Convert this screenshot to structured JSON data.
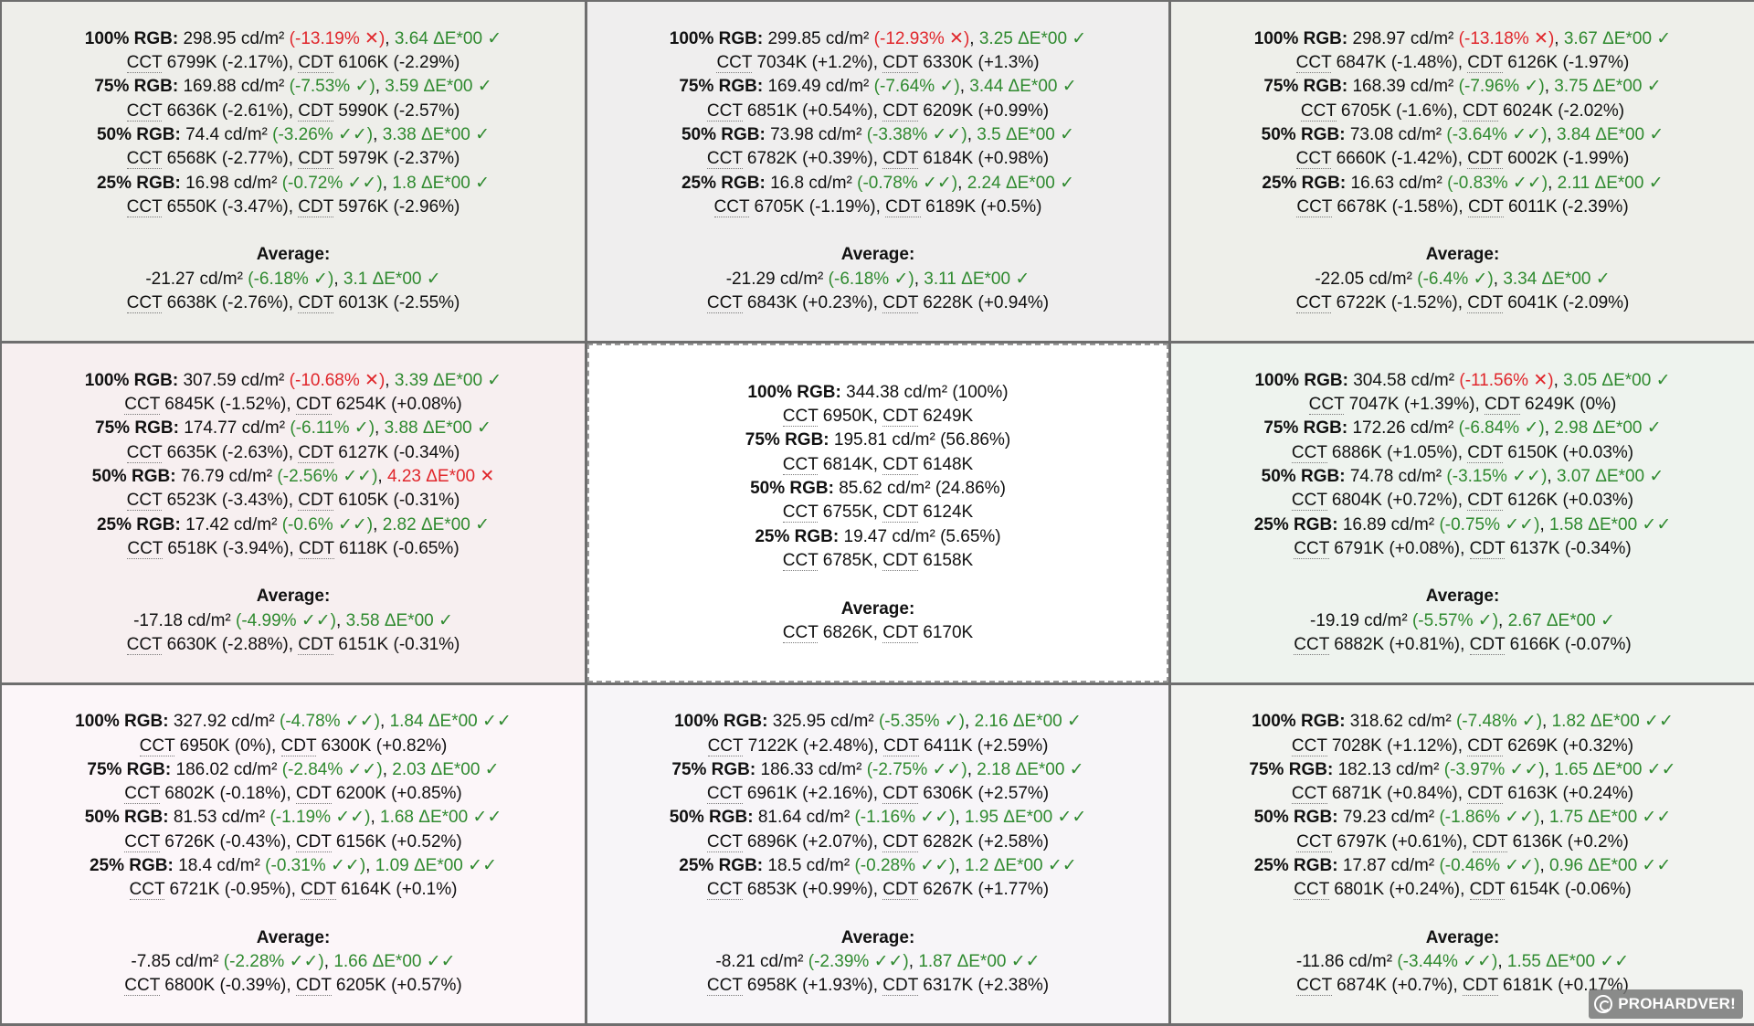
{
  "watermark": "PROHARDVER!",
  "labels": {
    "cct": "CCT",
    "cdt": "CDT",
    "average": "Average:"
  },
  "cells": [
    {
      "bg": "#eeeeea",
      "levels": [
        {
          "label": "100% RGB:",
          "lum": "298.95 cd/m²",
          "dev": "(-13.19% ✕)",
          "dev_status": "bad",
          "de": "3.64 ΔE*00 ✓",
          "de_status": "good",
          "cct": "6799K (-2.17%)",
          "cdt": "6106K (-2.29%)"
        },
        {
          "label": "75% RGB:",
          "lum": "169.88 cd/m²",
          "dev": "(-7.53% ✓)",
          "dev_status": "good",
          "de": "3.59 ΔE*00 ✓",
          "de_status": "good",
          "cct": "6636K (-2.61%)",
          "cdt": "5990K (-2.57%)"
        },
        {
          "label": "50% RGB:",
          "lum": "74.4 cd/m²",
          "dev": "(-3.26% ✓✓)",
          "dev_status": "good",
          "de": "3.38 ΔE*00 ✓",
          "de_status": "good",
          "cct": "6568K (-2.77%)",
          "cdt": "5979K (-2.37%)"
        },
        {
          "label": "25% RGB:",
          "lum": "16.98 cd/m²",
          "dev": "(-0.72% ✓✓)",
          "dev_status": "good",
          "de": "1.8 ΔE*00 ✓",
          "de_status": "good",
          "cct": "6550K (-3.47%)",
          "cdt": "5976K (-2.96%)"
        }
      ],
      "average": {
        "lum": "-21.27 cd/m²",
        "dev": "(-6.18% ✓)",
        "dev_status": "good",
        "de": "3.1 ΔE*00 ✓",
        "de_status": "good",
        "cct": "6638K (-2.76%)",
        "cdt": "6013K (-2.55%)"
      }
    },
    {
      "bg": "#efeeee",
      "levels": [
        {
          "label": "100% RGB:",
          "lum": "299.85 cd/m²",
          "dev": "(-12.93% ✕)",
          "dev_status": "bad",
          "de": "3.25 ΔE*00 ✓",
          "de_status": "good",
          "cct": "7034K (+1.2%)",
          "cdt": "6330K (+1.3%)"
        },
        {
          "label": "75% RGB:",
          "lum": "169.49 cd/m²",
          "dev": "(-7.64% ✓)",
          "dev_status": "good",
          "de": "3.44 ΔE*00 ✓",
          "de_status": "good",
          "cct": "6851K (+0.54%)",
          "cdt": "6209K (+0.99%)"
        },
        {
          "label": "50% RGB:",
          "lum": "73.98 cd/m²",
          "dev": "(-3.38% ✓✓)",
          "dev_status": "good",
          "de": "3.5 ΔE*00 ✓",
          "de_status": "good",
          "cct": "6782K (+0.39%)",
          "cdt": "6184K (+0.98%)"
        },
        {
          "label": "25% RGB:",
          "lum": "16.8 cd/m²",
          "dev": "(-0.78% ✓✓)",
          "dev_status": "good",
          "de": "2.24 ΔE*00 ✓",
          "de_status": "good",
          "cct": "6705K (-1.19%)",
          "cdt": "6189K (+0.5%)"
        }
      ],
      "average": {
        "lum": "-21.29 cd/m²",
        "dev": "(-6.18% ✓)",
        "dev_status": "good",
        "de": "3.11 ΔE*00 ✓",
        "de_status": "good",
        "cct": "6843K (+0.23%)",
        "cdt": "6228K (+0.94%)"
      }
    },
    {
      "bg": "#eeefea",
      "levels": [
        {
          "label": "100% RGB:",
          "lum": "298.97 cd/m²",
          "dev": "(-13.18% ✕)",
          "dev_status": "bad",
          "de": "3.67 ΔE*00 ✓",
          "de_status": "good",
          "cct": "6847K (-1.48%)",
          "cdt": "6126K (-1.97%)"
        },
        {
          "label": "75% RGB:",
          "lum": "168.39 cd/m²",
          "dev": "(-7.96% ✓)",
          "dev_status": "good",
          "de": "3.75 ΔE*00 ✓",
          "de_status": "good",
          "cct": "6705K (-1.6%)",
          "cdt": "6024K (-2.02%)"
        },
        {
          "label": "50% RGB:",
          "lum": "73.08 cd/m²",
          "dev": "(-3.64% ✓✓)",
          "dev_status": "good",
          "de": "3.84 ΔE*00 ✓",
          "de_status": "good",
          "cct": "6660K (-1.42%)",
          "cdt": "6002K (-1.99%)"
        },
        {
          "label": "25% RGB:",
          "lum": "16.63 cd/m²",
          "dev": "(-0.83% ✓✓)",
          "dev_status": "good",
          "de": "2.11 ΔE*00 ✓",
          "de_status": "good",
          "cct": "6678K (-1.58%)",
          "cdt": "6011K (-2.39%)"
        }
      ],
      "average": {
        "lum": "-22.05 cd/m²",
        "dev": "(-6.4% ✓)",
        "dev_status": "good",
        "de": "3.34 ΔE*00 ✓",
        "de_status": "good",
        "cct": "6722K (-1.52%)",
        "cdt": "6041K (-2.09%)"
      }
    },
    {
      "bg": "#f7eff0",
      "levels": [
        {
          "label": "100% RGB:",
          "lum": "307.59 cd/m²",
          "dev": "(-10.68% ✕)",
          "dev_status": "bad",
          "de": "3.39 ΔE*00 ✓",
          "de_status": "good",
          "cct": "6845K (-1.52%)",
          "cdt": "6254K (+0.08%)"
        },
        {
          "label": "75% RGB:",
          "lum": "174.77 cd/m²",
          "dev": "(-6.11% ✓)",
          "dev_status": "good",
          "de": "3.88 ΔE*00 ✓",
          "de_status": "good",
          "cct": "6635K (-2.63%)",
          "cdt": "6127K (-0.34%)"
        },
        {
          "label": "50% RGB:",
          "lum": "76.79 cd/m²",
          "dev": "(-2.56% ✓✓)",
          "dev_status": "good",
          "de": "4.23 ΔE*00 ✕",
          "de_status": "bad",
          "cct": "6523K (-3.43%)",
          "cdt": "6105K (-0.31%)"
        },
        {
          "label": "25% RGB:",
          "lum": "17.42 cd/m²",
          "dev": "(-0.6% ✓✓)",
          "dev_status": "good",
          "de": "2.82 ΔE*00 ✓",
          "de_status": "good",
          "cct": "6518K (-3.94%)",
          "cdt": "6118K (-0.65%)"
        }
      ],
      "average": {
        "lum": "-17.18 cd/m²",
        "dev": "(-4.99% ✓✓)",
        "dev_status": "good",
        "de": "3.58 ΔE*00 ✓",
        "de_status": "good",
        "cct": "6630K (-2.88%)",
        "cdt": "6151K (-0.31%)"
      }
    },
    {
      "bg": "#ffffff",
      "reference": true,
      "levels": [
        {
          "label": "100% RGB:",
          "lum": "344.38 cd/m²",
          "dev": "(100%)",
          "cct": "6950K",
          "cdt": "6249K"
        },
        {
          "label": "75% RGB:",
          "lum": "195.81 cd/m²",
          "dev": "(56.86%)",
          "cct": "6814K",
          "cdt": "6148K"
        },
        {
          "label": "50% RGB:",
          "lum": "85.62 cd/m²",
          "dev": "(24.86%)",
          "cct": "6755K",
          "cdt": "6124K"
        },
        {
          "label": "25% RGB:",
          "lum": "19.47 cd/m²",
          "dev": "(5.65%)",
          "cct": "6785K",
          "cdt": "6158K"
        }
      ],
      "average": {
        "cct": "6826K",
        "cdt": "6170K"
      }
    },
    {
      "bg": "#eef3ee",
      "levels": [
        {
          "label": "100% RGB:",
          "lum": "304.58 cd/m²",
          "dev": "(-11.56% ✕)",
          "dev_status": "bad",
          "de": "3.05 ΔE*00 ✓",
          "de_status": "good",
          "cct": "7047K (+1.39%)",
          "cdt": "6249K (0%)"
        },
        {
          "label": "75% RGB:",
          "lum": "172.26 cd/m²",
          "dev": "(-6.84% ✓)",
          "dev_status": "good",
          "de": "2.98 ΔE*00 ✓",
          "de_status": "good",
          "cct": "6886K (+1.05%)",
          "cdt": "6150K (+0.03%)"
        },
        {
          "label": "50% RGB:",
          "lum": "74.78 cd/m²",
          "dev": "(-3.15% ✓✓)",
          "dev_status": "good",
          "de": "3.07 ΔE*00 ✓",
          "de_status": "good",
          "cct": "6804K (+0.72%)",
          "cdt": "6126K (+0.03%)"
        },
        {
          "label": "25% RGB:",
          "lum": "16.89 cd/m²",
          "dev": "(-0.75% ✓✓)",
          "dev_status": "good",
          "de": "1.58 ΔE*00 ✓✓",
          "de_status": "good",
          "cct": "6791K (+0.08%)",
          "cdt": "6137K (-0.34%)"
        }
      ],
      "average": {
        "lum": "-19.19 cd/m²",
        "dev": "(-5.57% ✓)",
        "dev_status": "good",
        "de": "2.67 ΔE*00 ✓",
        "de_status": "good",
        "cct": "6882K (+0.81%)",
        "cdt": "6166K (-0.07%)"
      }
    },
    {
      "bg": "#fcf6f9",
      "levels": [
        {
          "label": "100% RGB:",
          "lum": "327.92 cd/m²",
          "dev": "(-4.78% ✓✓)",
          "dev_status": "good",
          "de": "1.84 ΔE*00 ✓✓",
          "de_status": "good",
          "cct": "6950K (0%)",
          "cdt": "6300K (+0.82%)"
        },
        {
          "label": "75% RGB:",
          "lum": "186.02 cd/m²",
          "dev": "(-2.84% ✓✓)",
          "dev_status": "good",
          "de": "2.03 ΔE*00 ✓",
          "de_status": "good",
          "cct": "6802K (-0.18%)",
          "cdt": "6200K (+0.85%)"
        },
        {
          "label": "50% RGB:",
          "lum": "81.53 cd/m²",
          "dev": "(-1.19% ✓✓)",
          "dev_status": "good",
          "de": "1.68 ΔE*00 ✓✓",
          "de_status": "good",
          "cct": "6726K (-0.43%)",
          "cdt": "6156K (+0.52%)"
        },
        {
          "label": "25% RGB:",
          "lum": "18.4 cd/m²",
          "dev": "(-0.31% ✓✓)",
          "dev_status": "good",
          "de": "1.09 ΔE*00 ✓✓",
          "de_status": "good",
          "cct": "6721K (-0.95%)",
          "cdt": "6164K (+0.1%)"
        }
      ],
      "average": {
        "lum": "-7.85 cd/m²",
        "dev": "(-2.28% ✓✓)",
        "dev_status": "good",
        "de": "1.66 ΔE*00 ✓✓",
        "de_status": "good",
        "cct": "6800K (-0.39%)",
        "cdt": "6205K (+0.57%)"
      }
    },
    {
      "bg": "#f7f5f8",
      "levels": [
        {
          "label": "100% RGB:",
          "lum": "325.95 cd/m²",
          "dev": "(-5.35% ✓)",
          "dev_status": "good",
          "de": "2.16 ΔE*00 ✓",
          "de_status": "good",
          "cct": "7122K (+2.48%)",
          "cdt": "6411K (+2.59%)"
        },
        {
          "label": "75% RGB:",
          "lum": "186.33 cd/m²",
          "dev": "(-2.75% ✓✓)",
          "dev_status": "good",
          "de": "2.18 ΔE*00 ✓",
          "de_status": "good",
          "cct": "6961K (+2.16%)",
          "cdt": "6306K (+2.57%)"
        },
        {
          "label": "50% RGB:",
          "lum": "81.64 cd/m²",
          "dev": "(-1.16% ✓✓)",
          "dev_status": "good",
          "de": "1.95 ΔE*00 ✓✓",
          "de_status": "good",
          "cct": "6896K (+2.07%)",
          "cdt": "6282K (+2.58%)"
        },
        {
          "label": "25% RGB:",
          "lum": "18.5 cd/m²",
          "dev": "(-0.28% ✓✓)",
          "dev_status": "good",
          "de": "1.2 ΔE*00 ✓✓",
          "de_status": "good",
          "cct": "6853K (+0.99%)",
          "cdt": "6267K (+1.77%)"
        }
      ],
      "average": {
        "lum": "-8.21 cd/m²",
        "dev": "(-2.39% ✓✓)",
        "dev_status": "good",
        "de": "1.87 ΔE*00 ✓✓",
        "de_status": "good",
        "cct": "6958K (+1.93%)",
        "cdt": "6317K (+2.38%)"
      }
    },
    {
      "bg": "#f2f3f0",
      "levels": [
        {
          "label": "100% RGB:",
          "lum": "318.62 cd/m²",
          "dev": "(-7.48% ✓)",
          "dev_status": "good",
          "de": "1.82 ΔE*00 ✓✓",
          "de_status": "good",
          "cct": "7028K (+1.12%)",
          "cdt": "6269K (+0.32%)"
        },
        {
          "label": "75% RGB:",
          "lum": "182.13 cd/m²",
          "dev": "(-3.97% ✓✓)",
          "dev_status": "good",
          "de": "1.65 ΔE*00 ✓✓",
          "de_status": "good",
          "cct": "6871K (+0.84%)",
          "cdt": "6163K (+0.24%)"
        },
        {
          "label": "50% RGB:",
          "lum": "79.23 cd/m²",
          "dev": "(-1.86% ✓✓)",
          "dev_status": "good",
          "de": "1.75 ΔE*00 ✓✓",
          "de_status": "good",
          "cct": "6797K (+0.61%)",
          "cdt": "6136K (+0.2%)"
        },
        {
          "label": "25% RGB:",
          "lum": "17.87 cd/m²",
          "dev": "(-0.46% ✓✓)",
          "dev_status": "good",
          "de": "0.96 ΔE*00 ✓✓",
          "de_status": "good",
          "cct": "6801K (+0.24%)",
          "cdt": "6154K (-0.06%)"
        }
      ],
      "average": {
        "lum": "-11.86 cd/m²",
        "dev": "(-3.44% ✓✓)",
        "dev_status": "good",
        "de": "1.55 ΔE*00 ✓✓",
        "de_status": "good",
        "cct": "6874K (+0.7%)",
        "cdt": "6181K (+0.17%)"
      }
    }
  ]
}
